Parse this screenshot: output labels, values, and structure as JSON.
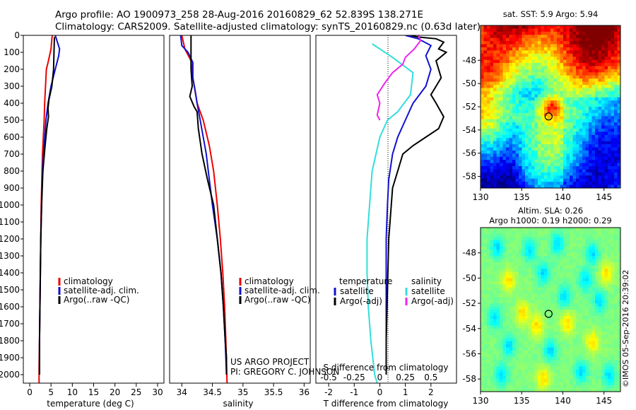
{
  "header": {
    "line1": "Argo profile: AO 1900973_258 28-Aug-2016 20160829_62 52.839S 138.271E",
    "line2": "Climatology: CARS2009. Satellite-adjusted climatology: synTS_20160829.nc (0.63d later)"
  },
  "credit": {
    "project": "US ARGO PROJECT",
    "pi": "PI: GREGORY C. JOHNSON",
    "imos": "©IMOS 05-Sep-2016 20:39:02"
  },
  "colors": {
    "climatology": "#ee0000",
    "satellite": "#1010d0",
    "argo": "#000000",
    "salinity_satellite": "#33dddd",
    "salinity_argo": "#ee22ee"
  },
  "chart_data": [
    {
      "id": "temperature",
      "type": "line",
      "xlabel": "temperature (deg C)",
      "ylabel": "",
      "xlim": [
        -1.5,
        31.5
      ],
      "ylim": [
        2050,
        0
      ],
      "xticks": [
        0,
        5,
        10,
        15,
        20,
        25,
        30
      ],
      "yticks": [
        0,
        100,
        200,
        300,
        400,
        500,
        600,
        700,
        800,
        900,
        1000,
        1100,
        1200,
        1300,
        1400,
        1500,
        1600,
        1700,
        1800,
        1900,
        2000
      ],
      "legend": [
        "climatology",
        "satellite-adj. clim.",
        "Argo(..raw -QC)"
      ],
      "series": [
        {
          "name": "climatology",
          "color": "#ee0000",
          "points": [
            [
              5.3,
              0
            ],
            [
              5.2,
              20
            ],
            [
              5.0,
              80
            ],
            [
              4.3,
              160
            ],
            [
              3.9,
              200
            ],
            [
              3.7,
              300
            ],
            [
              3.5,
              400
            ],
            [
              3.4,
              500
            ],
            [
              3.2,
              600
            ],
            [
              3.0,
              700
            ],
            [
              2.9,
              800
            ],
            [
              2.7,
              1000
            ],
            [
              2.6,
              1200
            ],
            [
              2.5,
              1400
            ],
            [
              2.4,
              1600
            ],
            [
              2.3,
              1800
            ],
            [
              2.2,
              1950
            ],
            [
              2.2,
              2050
            ]
          ]
        },
        {
          "name": "satellite-adj. clim.",
          "color": "#1010d0",
          "points": [
            [
              6.0,
              0
            ],
            [
              6.5,
              40
            ],
            [
              7.0,
              80
            ],
            [
              6.8,
              120
            ],
            [
              6.0,
              200
            ],
            [
              5.0,
              300
            ],
            [
              4.3,
              400
            ],
            [
              3.8,
              500
            ],
            [
              3.4,
              650
            ],
            [
              3.0,
              800
            ],
            [
              2.8,
              1000
            ],
            [
              2.6,
              1200
            ],
            [
              2.5,
              1400
            ],
            [
              2.4,
              1600
            ],
            [
              2.3,
              1800
            ],
            [
              2.3,
              1950
            ],
            [
              2.3,
              2000
            ]
          ]
        },
        {
          "name": "Argo(..raw -QC)",
          "color": "#000000",
          "points": [
            [
              5.8,
              10
            ],
            [
              5.7,
              100
            ],
            [
              5.6,
              200
            ],
            [
              5.2,
              300
            ],
            [
              4.5,
              380
            ],
            [
              4.3,
              430
            ],
            [
              4.4,
              480
            ],
            [
              4.0,
              550
            ],
            [
              3.6,
              650
            ],
            [
              3.1,
              800
            ],
            [
              2.8,
              1000
            ],
            [
              2.6,
              1200
            ],
            [
              2.5,
              1400
            ],
            [
              2.4,
              1600
            ],
            [
              2.3,
              1800
            ],
            [
              2.3,
              1950
            ],
            [
              2.3,
              2000
            ]
          ]
        }
      ]
    },
    {
      "id": "salinity",
      "type": "line",
      "xlabel": "salinity",
      "ylabel": "",
      "xlim": [
        33.8,
        36.1
      ],
      "ylim": [
        2050,
        0
      ],
      "xticks": [
        34,
        34.5,
        35,
        35.5,
        36
      ],
      "xtick_labels": [
        "34",
        "34.5",
        "35",
        "35.5",
        "36"
      ],
      "legend": [
        "climatology",
        "satellite-adj. clim.",
        "Argo(..raw -QC)"
      ],
      "series": [
        {
          "name": "climatology",
          "color": "#ee0000",
          "points": [
            [
              34.0,
              0
            ],
            [
              34.05,
              80
            ],
            [
              34.15,
              150
            ],
            [
              34.18,
              250
            ],
            [
              34.25,
              400
            ],
            [
              34.35,
              500
            ],
            [
              34.45,
              650
            ],
            [
              34.52,
              800
            ],
            [
              34.58,
              1000
            ],
            [
              34.63,
              1200
            ],
            [
              34.67,
              1400
            ],
            [
              34.7,
              1600
            ],
            [
              34.72,
              1800
            ],
            [
              34.74,
              2050
            ]
          ]
        },
        {
          "name": "satellite-adj. clim.",
          "color": "#1010d0",
          "points": [
            [
              33.98,
              0
            ],
            [
              34.0,
              60
            ],
            [
              34.1,
              100
            ],
            [
              34.18,
              160
            ],
            [
              34.18,
              250
            ],
            [
              34.22,
              330
            ],
            [
              34.25,
              400
            ],
            [
              34.3,
              500
            ],
            [
              34.35,
              600
            ],
            [
              34.4,
              700
            ],
            [
              34.45,
              850
            ],
            [
              34.5,
              1000
            ],
            [
              34.58,
              1200
            ],
            [
              34.64,
              1400
            ],
            [
              34.68,
              1600
            ],
            [
              34.71,
              1800
            ],
            [
              34.73,
              2000
            ]
          ]
        },
        {
          "name": "Argo(..raw -QC)",
          "color": "#000000",
          "points": [
            [
              34.15,
              0
            ],
            [
              34.15,
              200
            ],
            [
              34.17,
              300
            ],
            [
              34.13,
              360
            ],
            [
              34.2,
              420
            ],
            [
              34.25,
              450
            ],
            [
              34.27,
              550
            ],
            [
              34.33,
              700
            ],
            [
              34.42,
              850
            ],
            [
              34.52,
              1000
            ],
            [
              34.58,
              1200
            ],
            [
              34.64,
              1400
            ],
            [
              34.68,
              1600
            ],
            [
              34.71,
              1800
            ],
            [
              34.73,
              1900
            ],
            [
              34.73,
              2000
            ]
          ]
        }
      ]
    },
    {
      "id": "difference",
      "type": "line",
      "xlabel": "T difference from climatology",
      "xlabel_secondary": "S difference from climatology",
      "xlim": [
        -2.5,
        3.0
      ],
      "ylim": [
        2050,
        0
      ],
      "xticks": [
        -2,
        -1,
        0,
        1,
        2
      ],
      "xtick_labels": [
        "-2",
        "-1",
        "0",
        "1",
        "2"
      ],
      "xticks_secondary": [
        -0.5,
        -0.25,
        0,
        0.25,
        0.5
      ],
      "xtick_labels_secondary": [
        "-0.5",
        "-0.25",
        "0",
        "0.25",
        "0.5"
      ],
      "legend_temperature_title": "temperature",
      "legend_salinity_title": "salinity",
      "legend_temperature": [
        "satellite",
        "Argo(-adj)"
      ],
      "legend_salinity": [
        "satellite",
        "Argo(-adj)"
      ],
      "series": [
        {
          "name": "temperature satellite",
          "color": "#1010d0",
          "points": [
            [
              1.0,
              0
            ],
            [
              1.5,
              20
            ],
            [
              2.0,
              60
            ],
            [
              1.8,
              120
            ],
            [
              2.0,
              200
            ],
            [
              1.8,
              300
            ],
            [
              1.3,
              400
            ],
            [
              1.0,
              500
            ],
            [
              0.7,
              600
            ],
            [
              0.5,
              700
            ],
            [
              0.35,
              850
            ],
            [
              0.3,
              1000
            ],
            [
              0.25,
              1200
            ],
            [
              0.25,
              1500
            ],
            [
              0.25,
              1800
            ],
            [
              0.25,
              2000
            ]
          ]
        },
        {
          "name": "temperature Argo(-adj)",
          "color": "#000000",
          "points": [
            [
              1.2,
              0
            ],
            [
              1.5,
              10
            ],
            [
              2.2,
              20
            ],
            [
              2.5,
              40
            ],
            [
              2.3,
              80
            ],
            [
              2.6,
              100
            ],
            [
              2.2,
              150
            ],
            [
              2.4,
              250
            ],
            [
              2.0,
              350
            ],
            [
              2.2,
              400
            ],
            [
              2.5,
              480
            ],
            [
              2.3,
              550
            ],
            [
              1.8,
              600
            ],
            [
              1.3,
              650
            ],
            [
              0.9,
              700
            ],
            [
              0.7,
              800
            ],
            [
              0.5,
              900
            ],
            [
              0.45,
              1000
            ],
            [
              0.35,
              1200
            ],
            [
              0.3,
              1500
            ],
            [
              0.25,
              1800
            ],
            [
              0.25,
              2000
            ]
          ]
        },
        {
          "name": "salinity satellite",
          "color": "#33dddd",
          "points": [
            [
              0.05,
              -0.3
            ],
            [
              0.13,
              0.5
            ],
            [
              0.22,
              1.3
            ],
            [
              0.35,
              1.2
            ],
            [
              0.45,
              0.7
            ],
            [
              0.5,
              0.3
            ],
            [
              0.6,
              0.0
            ],
            [
              0.8,
              -0.3
            ],
            [
              1.0,
              -0.4
            ],
            [
              1.2,
              -0.5
            ],
            [
              1.4,
              -0.5
            ],
            [
              1.6,
              -0.45
            ],
            [
              1.8,
              -0.35
            ],
            [
              2.0,
              -0.2
            ],
            [
              2.05,
              -0.1
            ]
          ]
        },
        {
          "name": "salinity Argo(-adj)",
          "color": "#ee22ee",
          "points": [
            [
              0.0,
              1.5
            ],
            [
              0.03,
              1.6
            ],
            [
              0.08,
              1.35
            ],
            [
              0.13,
              1.0
            ],
            [
              0.17,
              0.9
            ],
            [
              0.22,
              0.5
            ],
            [
              0.28,
              0.2
            ],
            [
              0.35,
              -0.1
            ],
            [
              0.4,
              0.0
            ],
            [
              0.47,
              -0.1
            ],
            [
              0.5,
              0.0
            ]
          ]
        }
      ]
    },
    {
      "id": "sst_map",
      "type": "heatmap",
      "title": "sat. SST: 5.9 Argo: 5.94",
      "xlim": [
        130,
        147
      ],
      "ylim": [
        -59,
        -45
      ],
      "xticks": [
        130,
        135,
        140,
        145
      ],
      "yticks": [
        -48,
        -50,
        -52,
        -54,
        -56,
        -58
      ],
      "argo_position": [
        138.271,
        -52.839
      ]
    },
    {
      "id": "sla_map",
      "type": "heatmap",
      "title": "Altim. SLA: 0.26",
      "subtitle": "Argo h1000: 0.19 h2000: 0.29",
      "xlim": [
        130,
        147
      ],
      "ylim": [
        -59,
        -46
      ],
      "xticks": [
        130,
        135,
        140,
        145
      ],
      "yticks": [
        -48,
        -50,
        -52,
        -54,
        -56,
        -58
      ],
      "argo_position": [
        138.271,
        -52.839
      ]
    }
  ]
}
